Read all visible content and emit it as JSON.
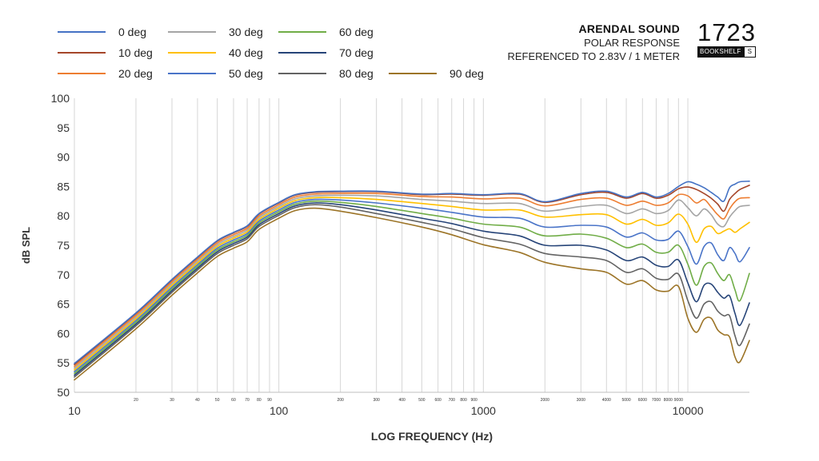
{
  "brand": {
    "name": "ARENDAL SOUND",
    "subtitle1": "POLAR RESPONSE",
    "subtitle2": "REFERENCED TO 2.83V / 1 METER",
    "model_number": "1723",
    "model_type": "BOOKSHELF",
    "model_variant": "S"
  },
  "chart_data": {
    "type": "line",
    "xscale": "log",
    "xlabel": "LOG FREQUENCY (Hz)",
    "ylabel": "dB SPL",
    "xlim": [
      10,
      20000
    ],
    "ylim": [
      50,
      100
    ],
    "yticks": [
      50,
      55,
      60,
      65,
      70,
      75,
      80,
      85,
      90,
      95,
      100
    ],
    "xticks_major": [
      10,
      100,
      1000,
      10000
    ],
    "xticks_major_labels": [
      "10",
      "100",
      "1000",
      "10000"
    ],
    "xticks_minor": [
      20,
      30,
      40,
      50,
      60,
      70,
      80,
      90,
      200,
      300,
      400,
      500,
      600,
      700,
      800,
      900,
      2000,
      3000,
      4000,
      5000,
      6000,
      7000,
      8000,
      9000
    ],
    "xticks_minor_labels": [
      "20",
      "30",
      "40",
      "50",
      "60",
      "70",
      "80",
      "90",
      "200",
      "300",
      "400",
      "500",
      "600",
      "700",
      "800",
      "900",
      "2000",
      "3000",
      "4000",
      "5000",
      "6000",
      "7000",
      "8000",
      "9000"
    ],
    "grid": "vertical",
    "legend": "top-left",
    "x": [
      10,
      20,
      30,
      40,
      50,
      60,
      70,
      80,
      100,
      120,
      150,
      200,
      300,
      500,
      700,
      1000,
      1500,
      2000,
      3000,
      4000,
      5000,
      6000,
      7000,
      8000,
      9000,
      10000,
      11000,
      12000,
      13000,
      14000,
      15000,
      16000,
      17000,
      18000,
      20000
    ],
    "series": [
      {
        "name": "0 deg",
        "color": "#4472c4",
        "values": [
          54.9,
          63.5,
          69.2,
          73.0,
          75.8,
          77.2,
          78.3,
          80.4,
          82.3,
          83.6,
          84.1,
          84.2,
          84.2,
          83.7,
          83.8,
          83.6,
          83.8,
          82.4,
          83.8,
          84.2,
          83.2,
          84.0,
          83.2,
          83.8,
          85.0,
          85.8,
          85.4,
          84.8,
          84.0,
          83.2,
          82.5,
          84.8,
          85.4,
          85.8,
          85.9
        ]
      },
      {
        "name": "10 deg",
        "color": "#a5462a",
        "values": [
          54.7,
          63.4,
          69.1,
          72.9,
          75.7,
          77.1,
          78.2,
          80.3,
          82.2,
          83.5,
          84.0,
          84.1,
          84.1,
          83.6,
          83.7,
          83.5,
          83.7,
          82.3,
          83.6,
          84.0,
          83.0,
          83.8,
          83.0,
          83.5,
          84.6,
          84.9,
          84.5,
          83.8,
          83.0,
          82.0,
          80.8,
          82.8,
          83.8,
          84.5,
          85.2
        ]
      },
      {
        "name": "20 deg",
        "color": "#ed7d31",
        "values": [
          54.4,
          63.1,
          68.8,
          72.6,
          75.4,
          76.8,
          77.9,
          80.0,
          81.9,
          83.2,
          83.7,
          83.8,
          83.8,
          83.3,
          83.2,
          82.9,
          83.0,
          81.7,
          82.8,
          83.0,
          81.8,
          82.5,
          81.8,
          82.2,
          83.6,
          83.4,
          82.2,
          82.8,
          81.5,
          80.2,
          79.5,
          81.2,
          82.4,
          83.0,
          83.1
        ]
      },
      {
        "name": "30 deg",
        "color": "#a5a5a5",
        "values": [
          54.1,
          62.8,
          68.5,
          72.3,
          75.1,
          76.5,
          77.6,
          79.7,
          81.6,
          82.9,
          83.4,
          83.5,
          83.4,
          82.8,
          82.5,
          82.1,
          82.1,
          80.8,
          81.6,
          81.8,
          80.4,
          81.2,
          80.4,
          80.9,
          82.7,
          81.4,
          80.0,
          81.2,
          80.2,
          78.6,
          78.2,
          79.8,
          80.9,
          81.6,
          81.8
        ]
      },
      {
        "name": "40 deg",
        "color": "#ffc000",
        "values": [
          53.8,
          62.5,
          68.2,
          72.0,
          74.8,
          76.2,
          77.3,
          79.4,
          81.3,
          82.6,
          83.1,
          83.1,
          82.8,
          82.1,
          81.6,
          81.0,
          81.0,
          79.8,
          80.2,
          80.2,
          78.6,
          79.4,
          78.4,
          78.8,
          80.3,
          78.6,
          75.5,
          77.8,
          78.2,
          77.0,
          77.4,
          77.8,
          77.2,
          77.8,
          78.9
        ]
      },
      {
        "name": "50 deg",
        "color": "#4a74c8",
        "values": [
          53.5,
          62.2,
          67.9,
          71.7,
          74.5,
          75.9,
          77.0,
          79.1,
          81.0,
          82.3,
          82.8,
          82.7,
          82.2,
          81.3,
          80.6,
          79.8,
          79.6,
          78.1,
          78.4,
          78.1,
          76.4,
          77.1,
          75.9,
          76.0,
          77.4,
          74.8,
          71.8,
          74.8,
          75.4,
          73.4,
          72.4,
          74.6,
          73.6,
          72.2,
          74.6
        ]
      },
      {
        "name": "60 deg",
        "color": "#70ad47",
        "values": [
          53.2,
          61.9,
          67.6,
          71.4,
          74.2,
          75.6,
          76.7,
          78.8,
          80.7,
          82.0,
          82.5,
          82.3,
          81.6,
          80.4,
          79.6,
          78.6,
          78.1,
          76.6,
          76.9,
          76.2,
          74.6,
          75.2,
          73.8,
          73.8,
          75.0,
          71.8,
          68.2,
          71.4,
          72.0,
          70.2,
          69.0,
          70.0,
          67.4,
          65.6,
          70.2
        ]
      },
      {
        "name": "70 deg",
        "color": "#264478",
        "values": [
          52.9,
          61.6,
          67.3,
          71.1,
          73.9,
          75.3,
          76.4,
          78.5,
          80.4,
          81.7,
          82.2,
          81.9,
          81.0,
          79.6,
          78.7,
          77.4,
          76.6,
          75.0,
          75.0,
          74.2,
          72.4,
          73.0,
          71.6,
          71.4,
          72.5,
          68.6,
          65.4,
          68.2,
          68.4,
          67.0,
          66.0,
          66.4,
          63.4,
          61.4,
          65.2
        ]
      },
      {
        "name": "80 deg",
        "color": "#636363",
        "values": [
          52.6,
          61.3,
          67.0,
          70.8,
          73.6,
          75.0,
          76.1,
          78.2,
          80.1,
          81.4,
          81.9,
          81.5,
          80.4,
          78.9,
          77.8,
          76.3,
          75.2,
          73.6,
          73.0,
          72.4,
          70.4,
          71.0,
          69.4,
          69.2,
          70.1,
          65.6,
          62.6,
          65.0,
          65.4,
          63.8,
          63.0,
          63.0,
          59.6,
          58.0,
          61.6
        ]
      },
      {
        "name": "90 deg",
        "color": "#9c7427",
        "values": [
          52.1,
          60.8,
          66.5,
          70.3,
          73.1,
          74.5,
          75.6,
          77.7,
          79.6,
          80.9,
          81.3,
          80.8,
          79.7,
          78.1,
          76.8,
          75.1,
          73.8,
          72.1,
          71.0,
          70.4,
          68.4,
          69.0,
          67.4,
          67.2,
          68.0,
          62.6,
          60.2,
          62.4,
          62.6,
          60.6,
          59.8,
          59.4,
          56.0,
          55.2,
          58.8
        ]
      }
    ]
  }
}
